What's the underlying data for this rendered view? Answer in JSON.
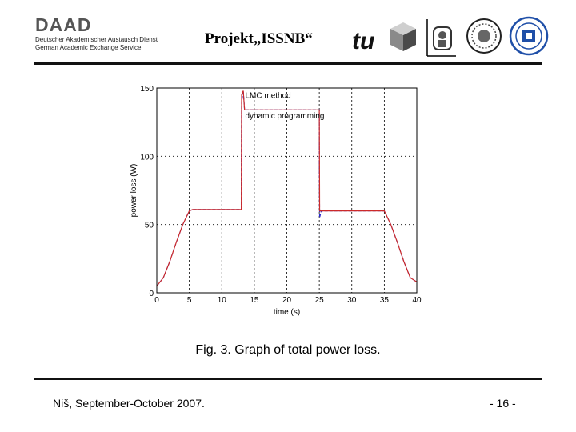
{
  "header": {
    "org_name": "DAAD",
    "org_line1": "Deutscher Akademischer Austausch Dienst",
    "org_line2": "German Academic Exchange Service",
    "project_title": "Projekt„ISSNB“"
  },
  "caption": "Fig. 3. Graph of total power loss.",
  "footer": {
    "location_date": "Niš, September-October 2007.",
    "page_number": "- 16 -"
  },
  "chart_data": {
    "type": "line",
    "title": "",
    "xlabel": "time (s)",
    "ylabel": "power loss (W)",
    "xlim": [
      0,
      40
    ],
    "ylim": [
      0,
      150
    ],
    "x_ticks": [
      0,
      5,
      10,
      15,
      20,
      25,
      30,
      35,
      40
    ],
    "y_ticks": [
      0,
      50,
      100,
      150
    ],
    "grid": true,
    "legend_position": "top-right",
    "series": [
      {
        "name": "LMC method",
        "color": "#2a2acc",
        "x": [
          0,
          1,
          2,
          3,
          4,
          5,
          5.5,
          13,
          13,
          13.05,
          13.3,
          13.5,
          13.7,
          14,
          25,
          25,
          25.05,
          25.3,
          26,
          35,
          36,
          37,
          38,
          39,
          40
        ],
        "y": [
          5,
          11,
          23,
          37,
          50,
          60,
          61,
          61,
          80,
          140,
          148,
          134,
          134,
          134,
          134,
          95,
          55,
          60,
          60,
          60,
          50,
          37,
          23,
          11,
          8
        ]
      },
      {
        "name": "dynamic programming",
        "color": "#cc2a2a",
        "x": [
          0,
          1,
          2,
          3,
          4,
          5,
          5.5,
          13,
          13.05,
          13.3,
          13.5,
          13.7,
          14,
          25,
          25.05,
          25.3,
          26,
          35,
          36,
          37,
          38,
          39,
          40
        ],
        "y": [
          5,
          11,
          23,
          37,
          50,
          60,
          61,
          61,
          145,
          148,
          134,
          134,
          134,
          134,
          60,
          60,
          60,
          60,
          50,
          37,
          23,
          11,
          8
        ]
      }
    ]
  },
  "logos": {
    "tu_logo_text": "tu",
    "logo_names": [
      "cube-logo",
      "university-emblem-logo",
      "university-seal-logo",
      "blue-faculty-seal-logo"
    ]
  },
  "colors": {
    "header_rule": "#111111",
    "grid": "#000000"
  }
}
